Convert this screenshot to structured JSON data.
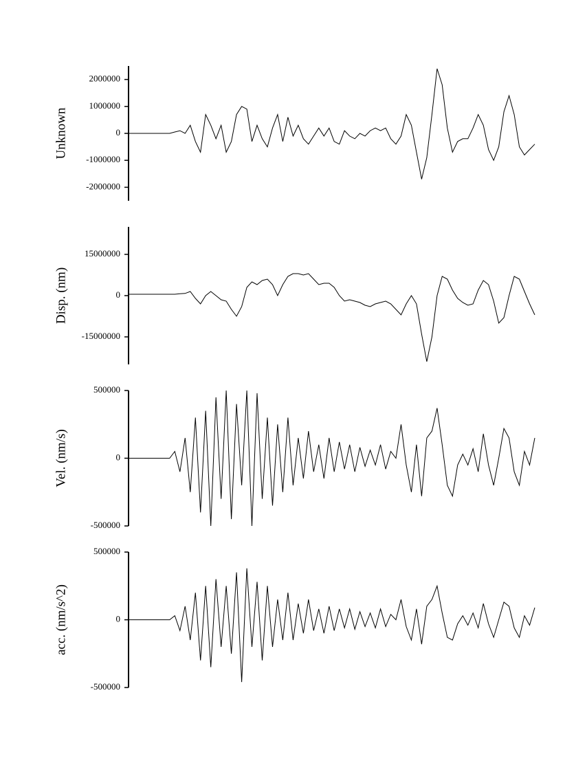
{
  "chart_data": [
    {
      "type": "line",
      "y_label": "Unknown",
      "color": "#000000",
      "ylim": [
        -2500000,
        2500000
      ],
      "yticks": [
        -2000000,
        -1000000,
        0,
        1000000,
        2000000
      ],
      "values": [
        0,
        0,
        0,
        0,
        0,
        0,
        0,
        0,
        0,
        50000,
        100000,
        0,
        300000,
        -300000,
        -700000,
        700000,
        300000,
        -200000,
        300000,
        -700000,
        -300000,
        700000,
        1000000,
        900000,
        -300000,
        300000,
        -200000,
        -500000,
        200000,
        700000,
        -300000,
        600000,
        -100000,
        300000,
        -200000,
        -400000,
        -100000,
        200000,
        -100000,
        200000,
        -300000,
        -400000,
        100000,
        -100000,
        -200000,
        0,
        -100000,
        100000,
        200000,
        100000,
        200000,
        -200000,
        -400000,
        -100000,
        700000,
        300000,
        -700000,
        -1700000,
        -900000,
        700000,
        2400000,
        1800000,
        200000,
        -700000,
        -300000,
        -200000,
        -200000,
        200000,
        700000,
        300000,
        -600000,
        -1000000,
        -500000,
        800000,
        1400000,
        700000,
        -500000,
        -800000,
        -600000,
        -400000
      ]
    },
    {
      "type": "line",
      "y_label": "Disp. (nm)",
      "color": "#000000",
      "ylim": [
        -25000000,
        25000000
      ],
      "yticks": [
        -15000000,
        0,
        15000000
      ],
      "values": [
        500000,
        500000,
        500000,
        500000,
        500000,
        500000,
        500000,
        500000,
        500000,
        500000,
        700000,
        800000,
        1500000,
        -1000000,
        -3000000,
        0,
        1500000,
        0,
        -1500000,
        -2000000,
        -5000000,
        -7500000,
        -4000000,
        3000000,
        5000000,
        4000000,
        5500000,
        6000000,
        4000000,
        0,
        4000000,
        7000000,
        8000000,
        8000000,
        7500000,
        8000000,
        6000000,
        4000000,
        4500000,
        4500000,
        3000000,
        0,
        -2000000,
        -1500000,
        -2000000,
        -2500000,
        -3500000,
        -4000000,
        -3000000,
        -2500000,
        -2000000,
        -3000000,
        -5000000,
        -7000000,
        -3000000,
        0,
        -3000000,
        -14000000,
        -24000000,
        -15000000,
        0,
        7000000,
        6000000,
        2000000,
        -1000000,
        -2500000,
        -3500000,
        -3000000,
        2000000,
        5500000,
        4000000,
        -2000000,
        -10000000,
        -8000000,
        0,
        7000000,
        6000000,
        1500000,
        -3000000,
        -7000000
      ]
    },
    {
      "type": "line",
      "y_label": "Vel. (nm/s)",
      "color": "#000000",
      "ylim": [
        -500000,
        500000
      ],
      "yticks": [
        -500000,
        0,
        500000
      ],
      "values": [
        0,
        0,
        0,
        0,
        0,
        0,
        0,
        0,
        0,
        50000,
        -100000,
        150000,
        -250000,
        300000,
        -400000,
        350000,
        -500000,
        450000,
        -300000,
        500000,
        -450000,
        400000,
        -200000,
        500000,
        -500000,
        480000,
        -300000,
        300000,
        -350000,
        250000,
        -250000,
        300000,
        -200000,
        150000,
        -150000,
        200000,
        -100000,
        100000,
        -150000,
        150000,
        -100000,
        120000,
        -80000,
        100000,
        -100000,
        80000,
        -60000,
        60000,
        -50000,
        100000,
        -80000,
        50000,
        0,
        250000,
        -50000,
        -250000,
        100000,
        -280000,
        150000,
        200000,
        370000,
        100000,
        -200000,
        -280000,
        -50000,
        30000,
        -50000,
        70000,
        -100000,
        180000,
        -50000,
        -200000,
        0,
        220000,
        150000,
        -100000,
        -200000,
        50000,
        -50000,
        150000
      ]
    },
    {
      "type": "line",
      "y_label": "acc. (nm/s^2)",
      "color": "#000000",
      "ylim": [
        -500000,
        500000
      ],
      "yticks": [
        -500000,
        0,
        500000
      ],
      "values": [
        0,
        0,
        0,
        0,
        0,
        0,
        0,
        0,
        0,
        30000,
        -80000,
        100000,
        -150000,
        200000,
        -300000,
        250000,
        -350000,
        300000,
        -200000,
        250000,
        -250000,
        350000,
        -460000,
        380000,
        -200000,
        280000,
        -300000,
        250000,
        -200000,
        150000,
        -150000,
        200000,
        -150000,
        120000,
        -100000,
        150000,
        -80000,
        80000,
        -100000,
        100000,
        -80000,
        80000,
        -60000,
        80000,
        -70000,
        60000,
        -50000,
        50000,
        -60000,
        80000,
        -50000,
        40000,
        0,
        150000,
        -50000,
        -150000,
        80000,
        -180000,
        100000,
        150000,
        250000,
        50000,
        -130000,
        -150000,
        -30000,
        30000,
        -40000,
        50000,
        -60000,
        120000,
        -30000,
        -130000,
        0,
        130000,
        100000,
        -60000,
        -130000,
        30000,
        -40000,
        90000
      ]
    }
  ]
}
